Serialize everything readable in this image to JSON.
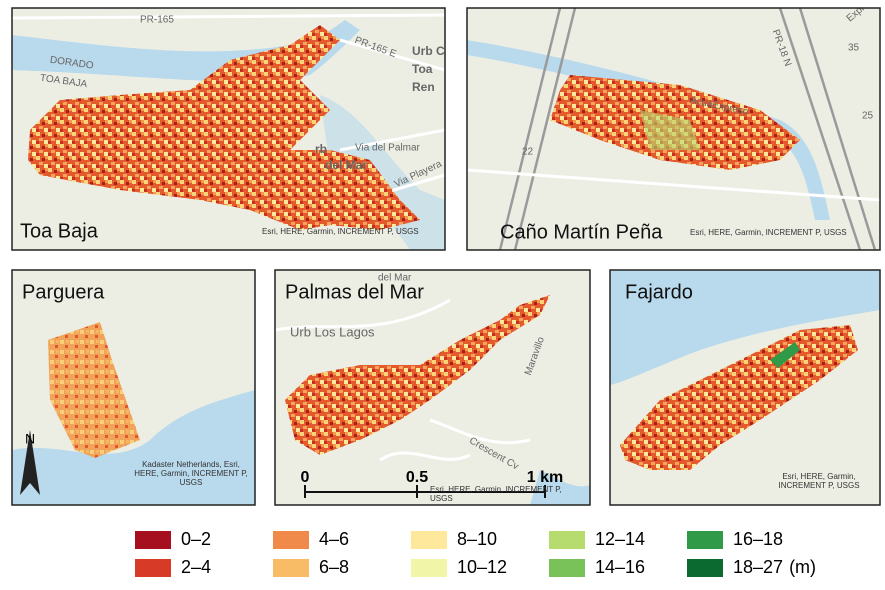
{
  "panels": [
    {
      "label": "Toa Baja",
      "attribution": "Esri, HERE, Garmin, INCREMENT P, USGS",
      "map_labels": [
        "PR-165",
        "DORADO",
        "TOA BAJA",
        "PR-165 E",
        "Urb C",
        "Toa",
        "Ren",
        "Via del Palmar",
        "rb",
        "del Mar",
        "Via Playera"
      ]
    },
    {
      "label": "Caño Martín Peña",
      "attribution": "Esri, HERE, Garmin, INCREMENT P, USGS",
      "map_labels": [
        "AcuaExpreso",
        "22",
        "35",
        "25",
        "PR-18 N",
        "Expreso"
      ]
    },
    {
      "label": "Parguera",
      "attribution": "Kadaster Netherlands, Esri, HERE, Garmin, INCREMENT P, USGS",
      "north": "N"
    },
    {
      "label": "Palmas del Mar",
      "attribution": "Esri, HERE, Garmin, INCREMENT P, USGS",
      "map_labels": [
        "Urb Los Lagos",
        "del Mar",
        "Maravillo",
        "Crescent Cv"
      ],
      "scale_bar": [
        "0",
        "0.5",
        "1 km"
      ]
    },
    {
      "label": "Fajardo",
      "attribution": "Esri, HERE, Garmin, INCREMENT P, USGS"
    }
  ],
  "legend": {
    "unit": "(m)",
    "items": [
      {
        "label": "0–2",
        "color": "#a50f1e"
      },
      {
        "label": "2–4",
        "color": "#d73a27"
      },
      {
        "label": "4–6",
        "color": "#ef8a4a"
      },
      {
        "label": "6–8",
        "color": "#f8bb66"
      },
      {
        "label": "8–10",
        "color": "#fde89c"
      },
      {
        "label": "10–12",
        "color": "#f0f5a8"
      },
      {
        "label": "12–14",
        "color": "#b6dc70"
      },
      {
        "label": "14–16",
        "color": "#79c25a"
      },
      {
        "label": "16–18",
        "color": "#2f9a48"
      },
      {
        "label": "18–27",
        "color": "#0b6a30"
      }
    ]
  }
}
